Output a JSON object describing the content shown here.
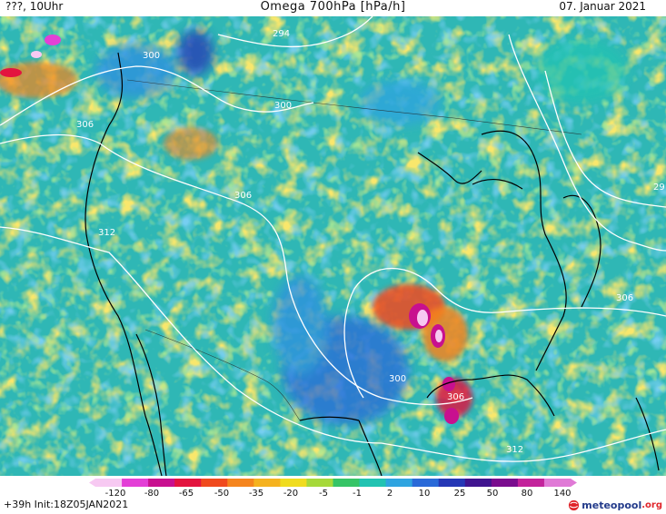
{
  "header": {
    "left": "???, 10Uhr",
    "title": "Omega 700hPa [hPa/h]",
    "right": "07. Januar 2021"
  },
  "map": {
    "contour_labels": [
      "294",
      "300",
      "300",
      "306",
      "306",
      "312",
      "306",
      "300",
      "306",
      "312",
      "29"
    ]
  },
  "color_scale": {
    "ticks": [
      "-120",
      "-80",
      "-65",
      "-50",
      "-35",
      "-20",
      "-5",
      "-1",
      "2",
      "10",
      "25",
      "50",
      "80",
      "140"
    ],
    "colors": [
      "#f7c9f2",
      "#e33fd6",
      "#c8108f",
      "#e3143f",
      "#f04a1e",
      "#f5851e",
      "#f5b21f",
      "#f0dc1f",
      "#a6d93a",
      "#36c466",
      "#22c3b2",
      "#2fa4e0",
      "#2a6ad8",
      "#2537b5",
      "#40148f",
      "#7a0d8e",
      "#c3239b",
      "#e07ad6"
    ]
  },
  "footer": {
    "left": "+39h  Init:18Z05JAN2021",
    "brand": "meteopool",
    "brand_tld": ".org"
  }
}
